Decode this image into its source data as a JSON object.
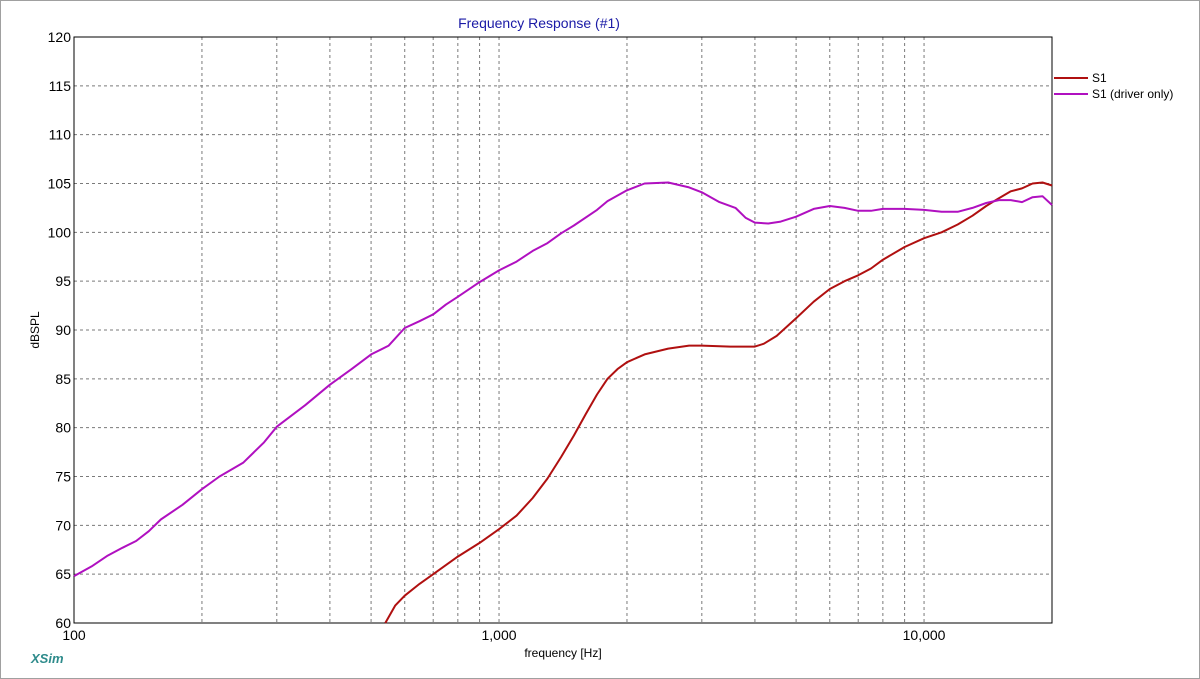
{
  "app": {
    "brand": "XSim"
  },
  "chart_data": {
    "type": "line",
    "title": "Frequency Response (#1)",
    "xlabel": "frequency [Hz]",
    "ylabel": "dBSPL",
    "xscale": "log",
    "xlim": [
      100,
      20000
    ],
    "ylim": [
      60,
      120
    ],
    "yticks": [
      60,
      65,
      70,
      75,
      80,
      85,
      90,
      95,
      100,
      105,
      110,
      115,
      120
    ],
    "xticks_labeled": [
      {
        "value": 100,
        "label": "100"
      },
      {
        "value": 1000,
        "label": "1,000"
      },
      {
        "value": 10000,
        "label": "10,000"
      }
    ],
    "grid": true,
    "legend_position": "right-top",
    "series": [
      {
        "name": "S1",
        "color": "#b01010",
        "points": [
          [
            540,
            60.0
          ],
          [
            570,
            61.8
          ],
          [
            600,
            62.8
          ],
          [
            650,
            64.0
          ],
          [
            700,
            65.0
          ],
          [
            800,
            66.8
          ],
          [
            900,
            68.2
          ],
          [
            1000,
            69.6
          ],
          [
            1100,
            71.0
          ],
          [
            1200,
            72.8
          ],
          [
            1300,
            74.8
          ],
          [
            1400,
            77.0
          ],
          [
            1500,
            79.2
          ],
          [
            1600,
            81.4
          ],
          [
            1700,
            83.4
          ],
          [
            1800,
            85.0
          ],
          [
            1900,
            86.0
          ],
          [
            2000,
            86.7
          ],
          [
            2200,
            87.5
          ],
          [
            2500,
            88.1
          ],
          [
            2800,
            88.4
          ],
          [
            3000,
            88.4
          ],
          [
            3500,
            88.3
          ],
          [
            4000,
            88.3
          ],
          [
            4200,
            88.6
          ],
          [
            4500,
            89.4
          ],
          [
            5000,
            91.2
          ],
          [
            5500,
            92.9
          ],
          [
            6000,
            94.2
          ],
          [
            6500,
            95.0
          ],
          [
            7000,
            95.6
          ],
          [
            7500,
            96.3
          ],
          [
            8000,
            97.2
          ],
          [
            9000,
            98.5
          ],
          [
            10000,
            99.4
          ],
          [
            11000,
            100.0
          ],
          [
            12000,
            100.8
          ],
          [
            13000,
            101.7
          ],
          [
            14000,
            102.7
          ],
          [
            15000,
            103.5
          ],
          [
            16000,
            104.2
          ],
          [
            17000,
            104.5
          ],
          [
            18000,
            105.0
          ],
          [
            19000,
            105.1
          ],
          [
            20000,
            104.8
          ]
        ]
      },
      {
        "name": "S1 (driver only)",
        "color": "#b010c0",
        "points": [
          [
            100,
            64.8
          ],
          [
            110,
            65.8
          ],
          [
            120,
            66.9
          ],
          [
            130,
            67.7
          ],
          [
            140,
            68.4
          ],
          [
            150,
            69.4
          ],
          [
            160,
            70.6
          ],
          [
            180,
            72.1
          ],
          [
            200,
            73.7
          ],
          [
            220,
            75.0
          ],
          [
            250,
            76.4
          ],
          [
            280,
            78.5
          ],
          [
            300,
            80.1
          ],
          [
            350,
            82.3
          ],
          [
            400,
            84.4
          ],
          [
            450,
            86.0
          ],
          [
            500,
            87.5
          ],
          [
            550,
            88.4
          ],
          [
            600,
            90.2
          ],
          [
            650,
            90.9
          ],
          [
            700,
            91.6
          ],
          [
            750,
            92.6
          ],
          [
            800,
            93.4
          ],
          [
            900,
            94.9
          ],
          [
            1000,
            96.1
          ],
          [
            1100,
            97.0
          ],
          [
            1200,
            98.1
          ],
          [
            1300,
            98.9
          ],
          [
            1400,
            99.9
          ],
          [
            1500,
            100.7
          ],
          [
            1700,
            102.3
          ],
          [
            1800,
            103.2
          ],
          [
            2000,
            104.3
          ],
          [
            2200,
            105.0
          ],
          [
            2500,
            105.1
          ],
          [
            2800,
            104.6
          ],
          [
            3000,
            104.1
          ],
          [
            3300,
            103.1
          ],
          [
            3600,
            102.5
          ],
          [
            3800,
            101.5
          ],
          [
            4000,
            101.0
          ],
          [
            4300,
            100.9
          ],
          [
            4600,
            101.1
          ],
          [
            5000,
            101.6
          ],
          [
            5500,
            102.4
          ],
          [
            6000,
            102.7
          ],
          [
            6500,
            102.5
          ],
          [
            7000,
            102.2
          ],
          [
            7500,
            102.2
          ],
          [
            8000,
            102.4
          ],
          [
            9000,
            102.4
          ],
          [
            10000,
            102.3
          ],
          [
            11000,
            102.1
          ],
          [
            12000,
            102.1
          ],
          [
            13000,
            102.5
          ],
          [
            14000,
            103.0
          ],
          [
            15000,
            103.3
          ],
          [
            16000,
            103.3
          ],
          [
            17000,
            103.1
          ],
          [
            18000,
            103.6
          ],
          [
            19000,
            103.7
          ],
          [
            20000,
            102.8
          ]
        ]
      }
    ]
  }
}
